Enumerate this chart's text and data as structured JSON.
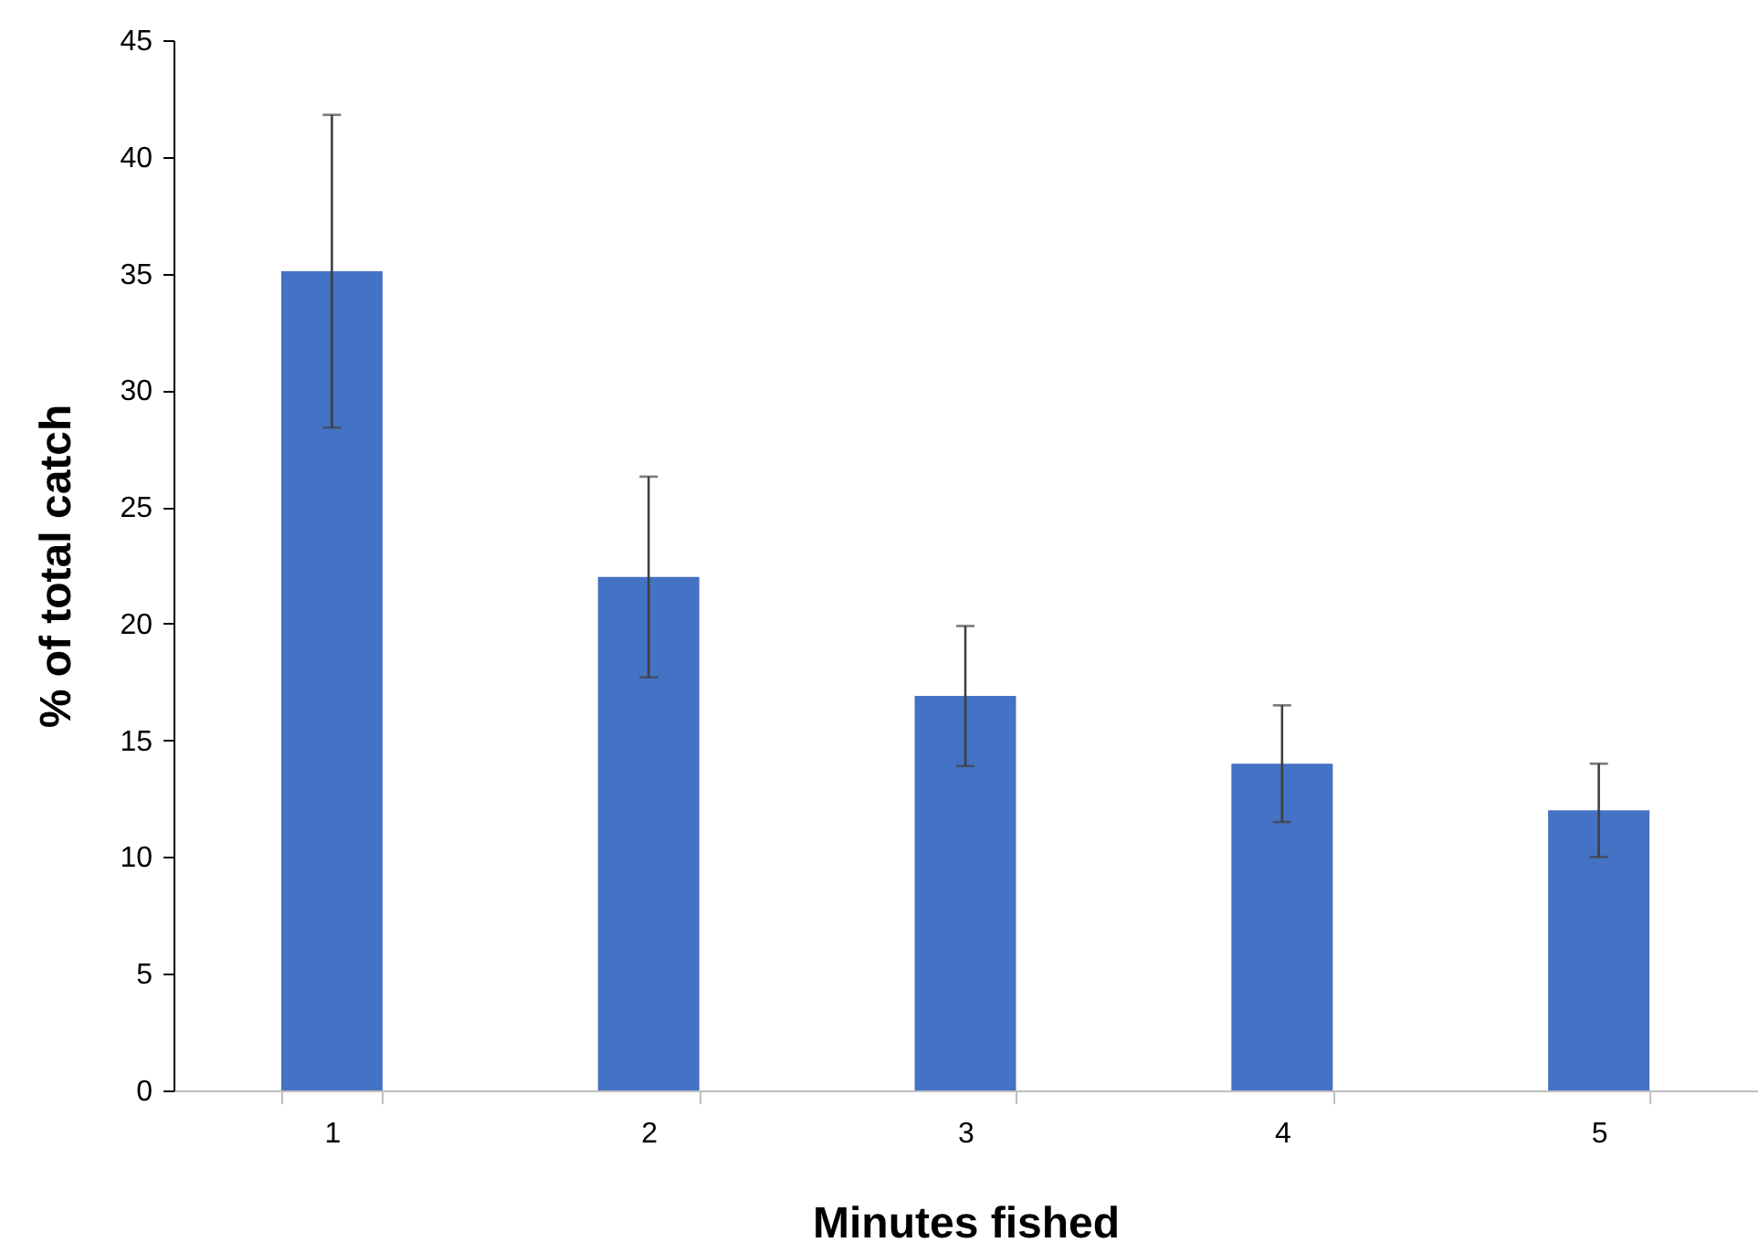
{
  "chart_data": {
    "type": "bar",
    "xlabel": "Minutes fished",
    "ylabel": "% of total catch",
    "categories": [
      "1",
      "2",
      "3",
      "4",
      "5"
    ],
    "values": [
      35.1,
      22.0,
      16.9,
      14.0,
      12.0
    ],
    "errors": [
      6.7,
      4.3,
      3.0,
      2.5,
      2.0
    ],
    "color": "#4472c4",
    "ylim": [
      0,
      45
    ],
    "yticks": [
      0,
      5,
      10,
      15,
      20,
      25,
      30,
      35,
      40,
      45
    ],
    "grid": false
  }
}
